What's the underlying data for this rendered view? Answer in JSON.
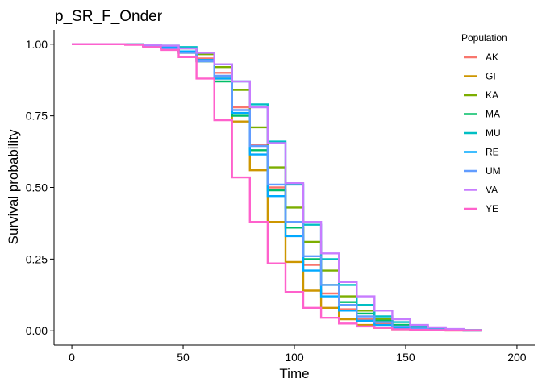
{
  "chart_data": {
    "type": "line",
    "step": true,
    "title": "p_SR_F_Onder",
    "xlabel": "Time",
    "ylabel": "Survival probability",
    "xlim": [
      -8,
      208
    ],
    "ylim": [
      -0.05,
      1.05
    ],
    "x_ticks": [
      0,
      50,
      100,
      150,
      200
    ],
    "x_tick_labels": [
      "0",
      "50",
      "100",
      "150",
      "200"
    ],
    "y_ticks": [
      0,
      0.25,
      0.5,
      0.75,
      1.0
    ],
    "y_tick_labels": [
      "0.00",
      "0.25",
      "0.50",
      "0.75",
      "1.00"
    ],
    "grid": false,
    "legend_title": "Population",
    "legend_position": "right",
    "series": [
      {
        "name": "AK",
        "color": "#F8766D",
        "x": [
          0,
          24,
          32,
          40,
          48,
          56,
          64,
          72,
          80,
          88,
          96,
          104,
          112,
          120,
          128,
          136,
          144,
          152,
          160,
          168,
          176,
          184
        ],
        "y": [
          1.0,
          0.999,
          0.995,
          0.99,
          0.975,
          0.95,
          0.9,
          0.78,
          0.65,
          0.5,
          0.36,
          0.23,
          0.13,
          0.075,
          0.04,
          0.025,
          0.012,
          0.008,
          0.004,
          0.002,
          0.001,
          0.001
        ]
      },
      {
        "name": "GI",
        "color": "#CD9600",
        "x": [
          0,
          24,
          32,
          40,
          48,
          56,
          64,
          72,
          80,
          88,
          96,
          104,
          112,
          120,
          128,
          136,
          144,
          152,
          160,
          168,
          176,
          184
        ],
        "y": [
          1.0,
          0.999,
          0.995,
          0.985,
          0.97,
          0.94,
          0.88,
          0.73,
          0.56,
          0.38,
          0.24,
          0.14,
          0.08,
          0.04,
          0.02,
          0.01,
          0.005,
          0.003,
          0.002,
          0.001,
          0.001,
          0.001
        ]
      },
      {
        "name": "KA",
        "color": "#7CAE00",
        "x": [
          0,
          24,
          32,
          40,
          48,
          56,
          64,
          72,
          80,
          88,
          96,
          104,
          112,
          120,
          128,
          136,
          144,
          152,
          160,
          168,
          176,
          184
        ],
        "y": [
          1.0,
          0.999,
          0.997,
          0.992,
          0.985,
          0.965,
          0.92,
          0.84,
          0.71,
          0.57,
          0.43,
          0.31,
          0.21,
          0.12,
          0.07,
          0.04,
          0.02,
          0.012,
          0.006,
          0.003,
          0.002,
          0.001
        ]
      },
      {
        "name": "MA",
        "color": "#00BE67",
        "x": [
          0,
          24,
          32,
          40,
          48,
          56,
          64,
          72,
          80,
          88,
          96,
          104,
          112,
          120,
          128,
          136,
          144,
          152,
          160,
          168,
          176,
          184
        ],
        "y": [
          1.0,
          0.999,
          0.995,
          0.99,
          0.975,
          0.94,
          0.87,
          0.75,
          0.63,
          0.49,
          0.36,
          0.25,
          0.16,
          0.1,
          0.06,
          0.035,
          0.02,
          0.01,
          0.005,
          0.003,
          0.001,
          0.001
        ]
      },
      {
        "name": "MU",
        "color": "#00BFC4",
        "x": [
          0,
          24,
          32,
          40,
          48,
          56,
          64,
          72,
          80,
          88,
          96,
          104,
          112,
          120,
          128,
          136,
          144,
          152,
          160,
          168,
          176,
          184
        ],
        "y": [
          1.0,
          0.999,
          0.998,
          0.995,
          0.99,
          0.97,
          0.93,
          0.87,
          0.79,
          0.66,
          0.51,
          0.37,
          0.25,
          0.16,
          0.09,
          0.05,
          0.03,
          0.015,
          0.008,
          0.004,
          0.002,
          0.001
        ]
      },
      {
        "name": "RE",
        "color": "#00A9FF",
        "x": [
          0,
          24,
          32,
          40,
          48,
          56,
          64,
          72,
          80,
          88,
          96,
          104,
          112,
          120,
          128,
          136,
          144,
          152,
          160,
          168,
          176,
          184
        ],
        "y": [
          1.0,
          0.999,
          0.995,
          0.99,
          0.975,
          0.945,
          0.88,
          0.76,
          0.615,
          0.47,
          0.33,
          0.21,
          0.12,
          0.07,
          0.035,
          0.02,
          0.01,
          0.005,
          0.003,
          0.002,
          0.001,
          0.001
        ]
      },
      {
        "name": "UM",
        "color": "#619CFF",
        "x": [
          0,
          24,
          32,
          40,
          48,
          56,
          64,
          72,
          80,
          88,
          96,
          104,
          112,
          120,
          128,
          136,
          144,
          152,
          160,
          168,
          176,
          184
        ],
        "y": [
          1.0,
          0.999,
          0.993,
          0.985,
          0.97,
          0.94,
          0.89,
          0.77,
          0.645,
          0.51,
          0.38,
          0.26,
          0.16,
          0.09,
          0.05,
          0.03,
          0.015,
          0.008,
          0.004,
          0.002,
          0.001,
          0.001
        ]
      },
      {
        "name": "VA",
        "color": "#C77CFF",
        "x": [
          0,
          24,
          32,
          40,
          48,
          56,
          64,
          72,
          80,
          88,
          96,
          104,
          112,
          120,
          128,
          136,
          144,
          152,
          160,
          168,
          176,
          184
        ],
        "y": [
          1.0,
          0.999,
          0.998,
          0.995,
          0.985,
          0.97,
          0.93,
          0.87,
          0.78,
          0.655,
          0.515,
          0.38,
          0.27,
          0.17,
          0.12,
          0.07,
          0.04,
          0.02,
          0.012,
          0.006,
          0.002,
          0.001
        ]
      },
      {
        "name": "YE",
        "color": "#FF61CC",
        "x": [
          0,
          24,
          32,
          40,
          48,
          56,
          64,
          72,
          80,
          88,
          96,
          104,
          112,
          120,
          128,
          136,
          144,
          152,
          160,
          168,
          176,
          184
        ],
        "y": [
          1.0,
          0.998,
          0.99,
          0.98,
          0.955,
          0.88,
          0.735,
          0.535,
          0.38,
          0.235,
          0.135,
          0.08,
          0.045,
          0.025,
          0.015,
          0.01,
          0.005,
          0.003,
          0.002,
          0.001,
          0.001,
          0.001
        ]
      }
    ]
  }
}
